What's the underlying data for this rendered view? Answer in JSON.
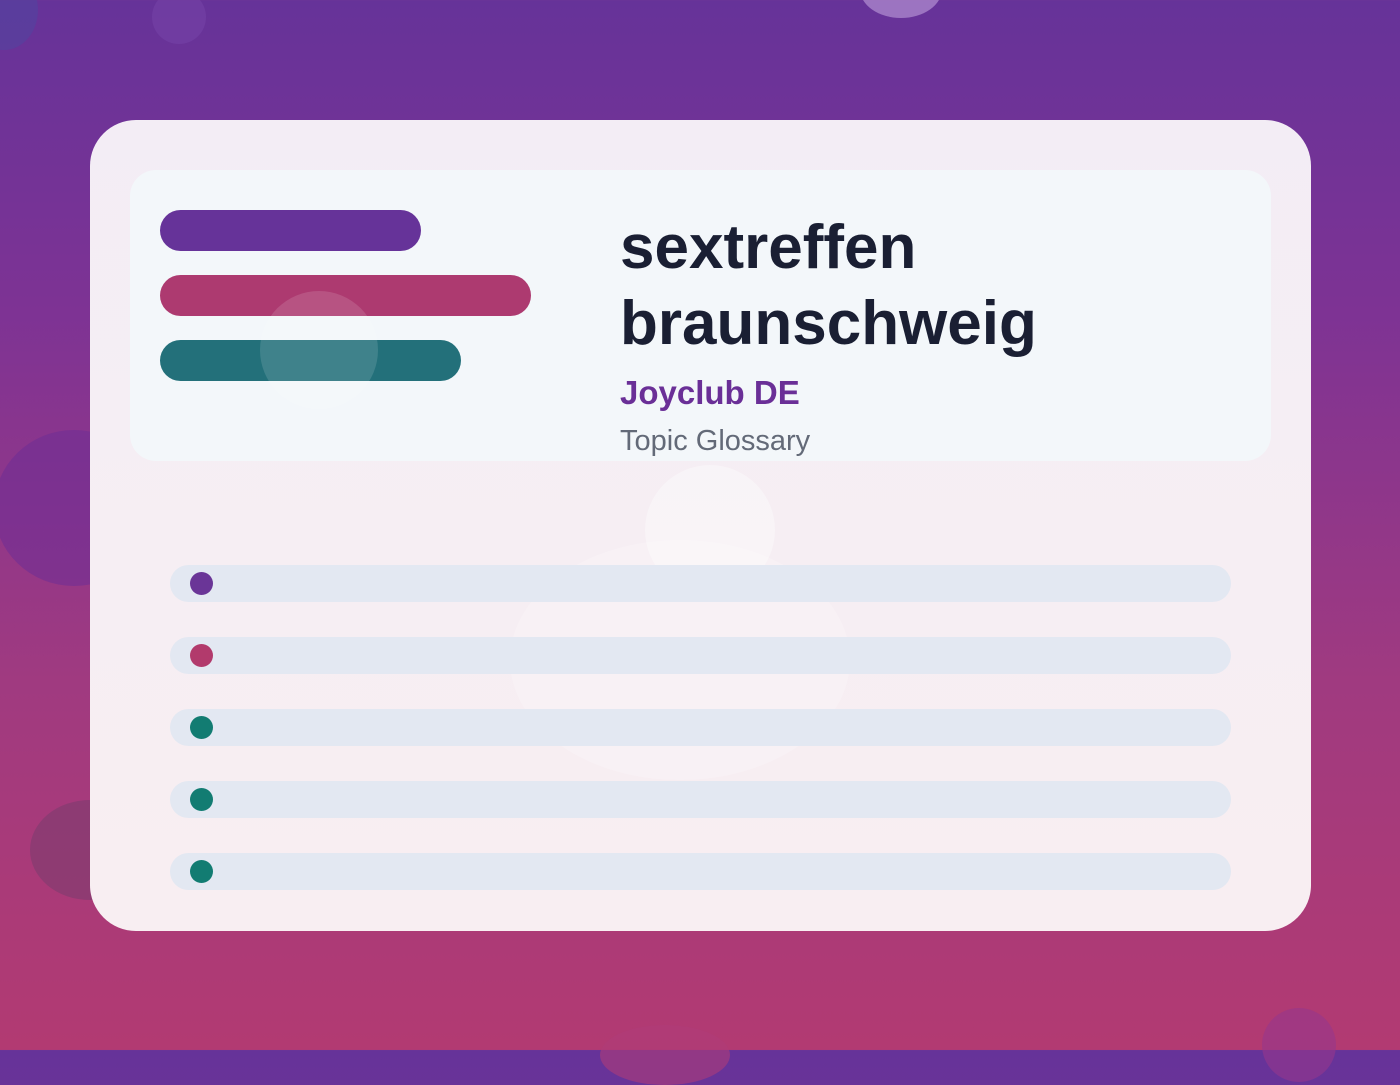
{
  "header": {
    "title_line1": "sextreffen",
    "title_line2": "braunschweig",
    "brand": "Joyclub DE",
    "caption": "Topic Glossary"
  },
  "colors": {
    "background_top": "#663399",
    "background_bottom": "#b23a72",
    "card": "#f5eef4",
    "panel": "#f3f7fa",
    "title_text": "#1a1f33",
    "brand_text": "#6a2f97",
    "caption_text": "#636a78",
    "bar_purple": "#663399",
    "bar_pink": "#ad3a70",
    "bar_teal": "#23707a",
    "row_fill": "#e3e8f2"
  },
  "accent_bars": [
    {
      "color": "#663399"
    },
    {
      "color": "#ad3a70"
    },
    {
      "color": "#23707a"
    }
  ],
  "list_rows": [
    {
      "dot_color": "#6a3597"
    },
    {
      "dot_color": "#b23a6c"
    },
    {
      "dot_color": "#127c72"
    },
    {
      "dot_color": "#127c72"
    },
    {
      "dot_color": "#127c72"
    }
  ]
}
